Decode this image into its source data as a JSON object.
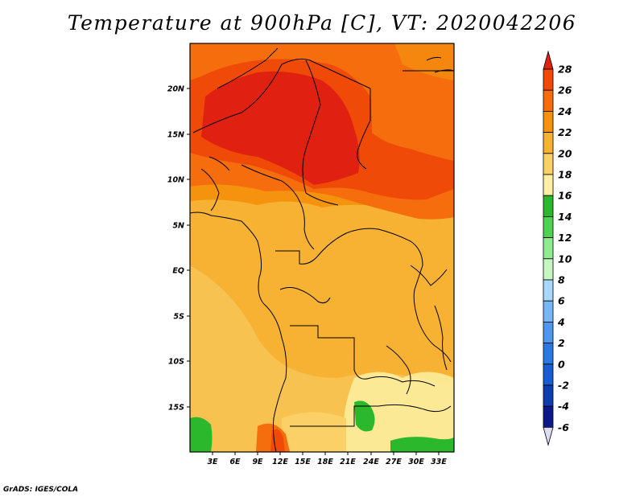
{
  "title": "Temperature at 900hPa [C], VT: 2020042206",
  "credit": "GrADS: IGES/COLA",
  "map": {
    "lat_labels": [
      "20N",
      "15N",
      "10N",
      "5N",
      "EQ",
      "5S",
      "10S",
      "15S"
    ],
    "lon_labels": [
      "3E",
      "6E",
      "9E",
      "12E",
      "15E",
      "18E",
      "21E",
      "24E",
      "27E",
      "30E",
      "33E"
    ],
    "extent": {
      "lon_min": 0,
      "lon_max": 35,
      "lat_min": -20,
      "lat_max": 25
    }
  },
  "colorbar": {
    "levels": [
      "28",
      "26",
      "24",
      "22",
      "20",
      "18",
      "16",
      "14",
      "12",
      "10",
      "8",
      "6",
      "4",
      "2",
      "0",
      "-2",
      "-4",
      "-6"
    ],
    "colors": [
      "#e02010",
      "#f04a08",
      "#f56d0c",
      "#f5930f",
      "#f7b233",
      "#fad067",
      "#fdf0a2",
      "#2cb82c",
      "#4fd24f",
      "#8eec8e",
      "#c6f7c3",
      "#a9d8ff",
      "#78b7f5",
      "#4d98ec",
      "#2a79e1",
      "#175ed0",
      "#0c3fad",
      "#0a1a88",
      "#dcdcf5"
    ]
  }
}
